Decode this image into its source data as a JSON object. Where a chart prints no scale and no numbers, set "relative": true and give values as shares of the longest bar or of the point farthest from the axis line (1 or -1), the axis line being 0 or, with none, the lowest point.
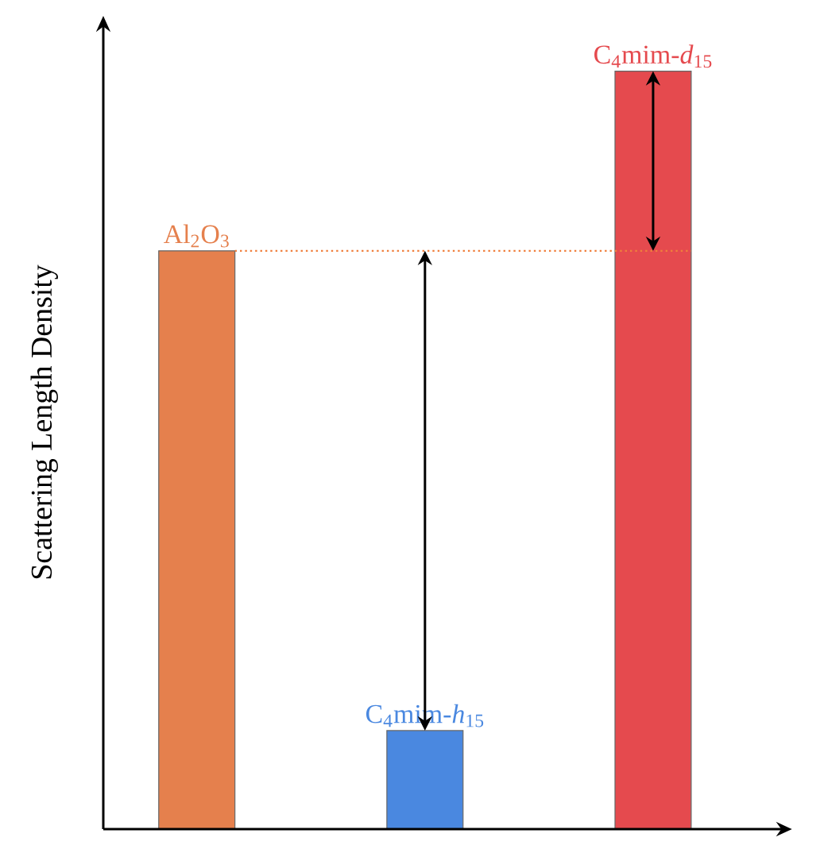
{
  "chart_data": {
    "type": "bar",
    "relative": true,
    "ylabel": "Scattering Length Density",
    "categories": [
      "Al$_{2}$O$_{3}$",
      "C$_{4}$mim-*h*$_{15}$",
      "C$_{4}$mim-*d*$_{15}$"
    ],
    "values": [
      0.763,
      0.13,
      1
    ],
    "colors": [
      "#e5804d",
      "#4a88e0",
      "#e54a4e"
    ],
    "ref_lines": [
      {
        "axis": "y",
        "value": 0.763,
        "color": "#f07f3c",
        "line_style": "dotted"
      }
    ]
  }
}
